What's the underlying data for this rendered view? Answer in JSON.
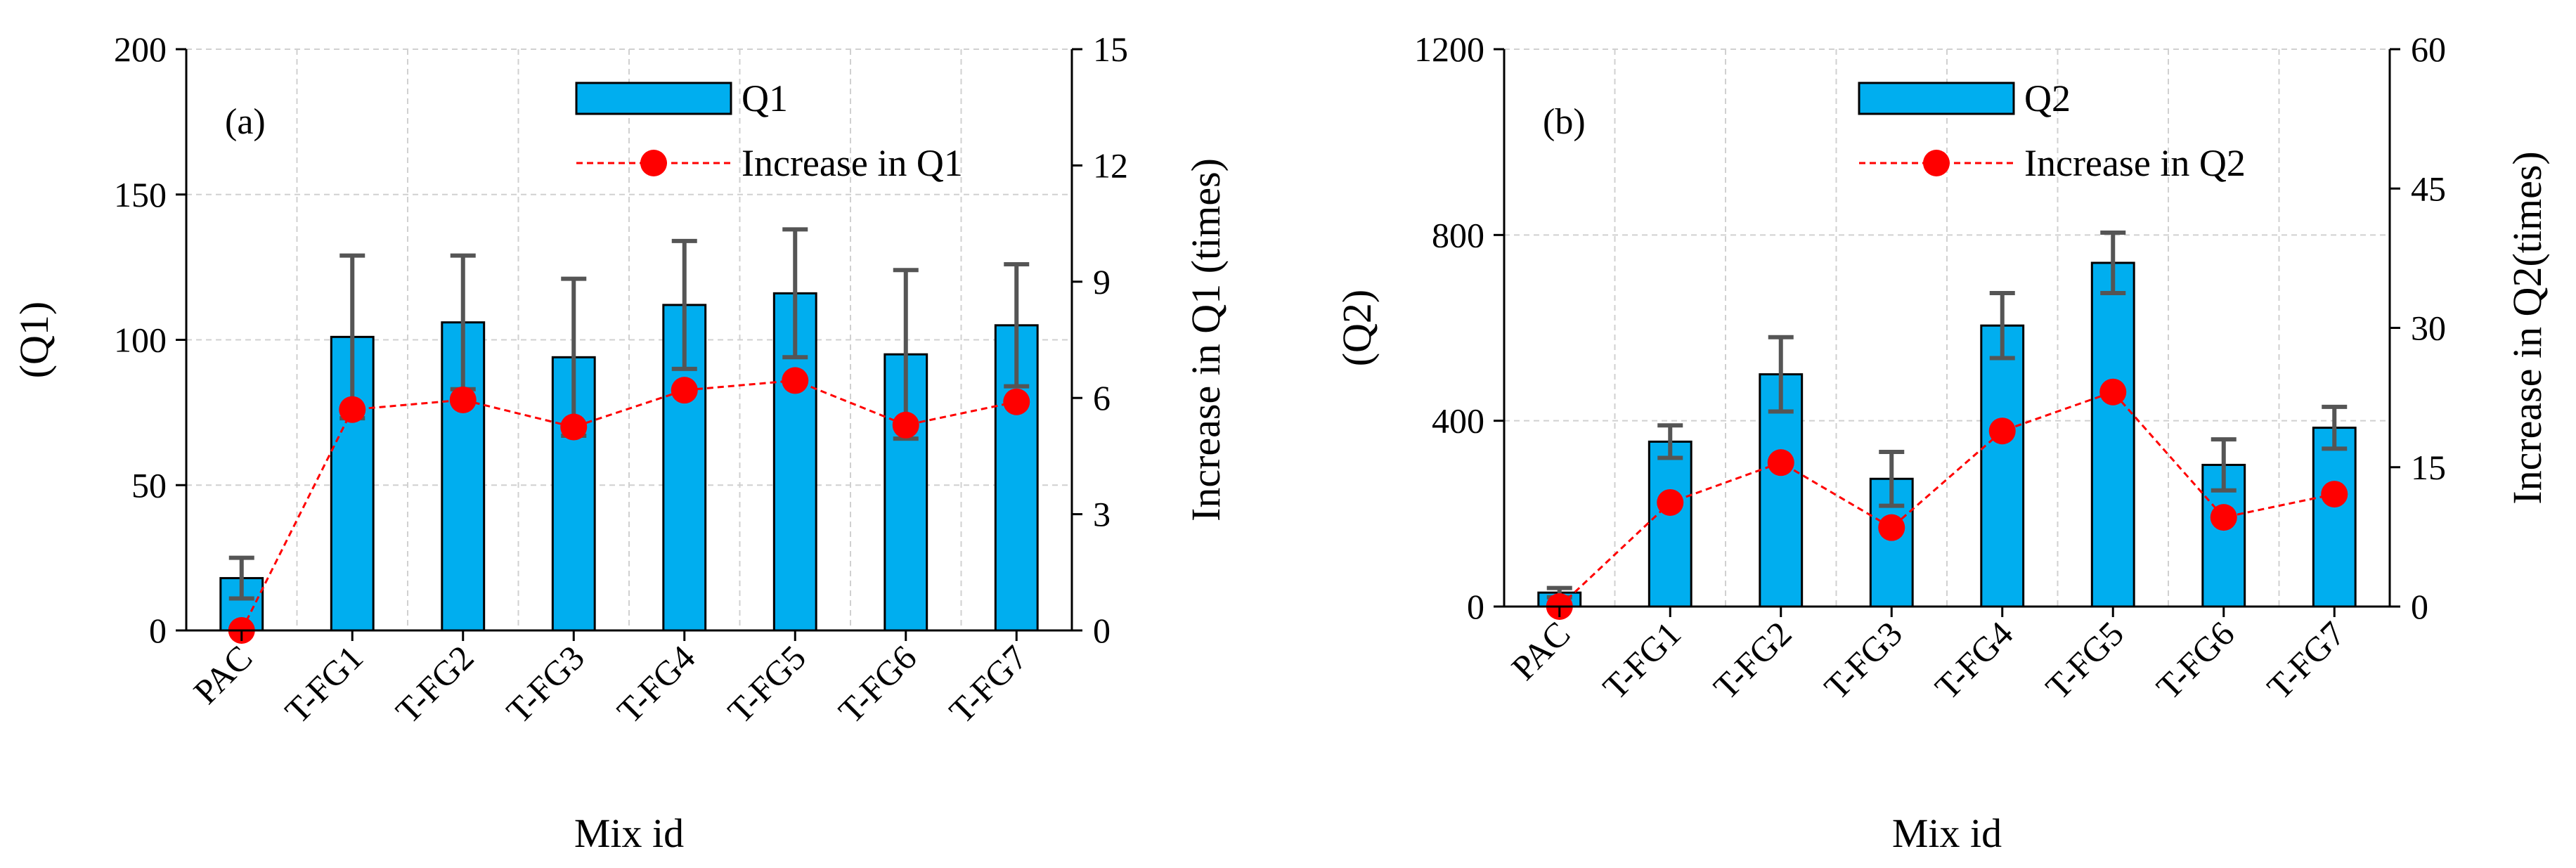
{
  "chart_data": [
    {
      "type": "bar",
      "panel_label": "(a)",
      "categories": [
        "PAC",
        "T-FG1",
        "T-FG2",
        "T-FG3",
        "T-FG4",
        "T-FG5",
        "T-FG6",
        "T-FG7"
      ],
      "xlabel": "Mix id",
      "ylabel": "(Q1)",
      "y2label": "Increase in Q1 (times)",
      "ylim": [
        0,
        200
      ],
      "yticks": [
        0,
        50,
        100,
        150,
        200
      ],
      "y2lim": [
        0,
        15
      ],
      "y2ticks": [
        0,
        3,
        6,
        9,
        12,
        15
      ],
      "grid": true,
      "legend_position": "top-right",
      "series": [
        {
          "name": "Q1",
          "type": "bar",
          "axis": "left",
          "color": "#00AEEF",
          "values": [
            18,
            101,
            106,
            94,
            112,
            116,
            95,
            105
          ],
          "error": [
            7,
            28,
            23,
            27,
            22,
            22,
            29,
            21
          ]
        },
        {
          "name": "Increase in Q1",
          "type": "line",
          "axis": "right",
          "color": "#FF0000",
          "values": [
            0,
            5.7,
            5.95,
            5.25,
            6.2,
            6.45,
            5.3,
            5.9
          ]
        }
      ]
    },
    {
      "type": "bar",
      "panel_label": "(b)",
      "categories": [
        "PAC",
        "T-FG1",
        "T-FG2",
        "T-FG3",
        "T-FG4",
        "T-FG5",
        "T-FG6",
        "T-FG7"
      ],
      "xlabel": "Mix id",
      "ylabel": "(Q2)",
      "y2label": "Increase in Q2(times)",
      "ylim": [
        0,
        1200
      ],
      "yticks": [
        0,
        400,
        800,
        1200
      ],
      "y2lim": [
        0,
        60
      ],
      "y2ticks": [
        0,
        15,
        30,
        45,
        60
      ],
      "grid": true,
      "legend_position": "top-right",
      "series": [
        {
          "name": "Q2",
          "type": "bar",
          "axis": "left",
          "color": "#00AEEF",
          "values": [
            30,
            355,
            500,
            275,
            605,
            740,
            305,
            385
          ],
          "error": [
            10,
            35,
            80,
            58,
            70,
            65,
            55,
            45
          ]
        },
        {
          "name": "Increase in Q2",
          "type": "line",
          "axis": "right",
          "color": "#FF0000",
          "values": [
            0,
            11.2,
            15.5,
            8.5,
            18.9,
            23.1,
            9.6,
            12.1
          ]
        }
      ]
    }
  ]
}
